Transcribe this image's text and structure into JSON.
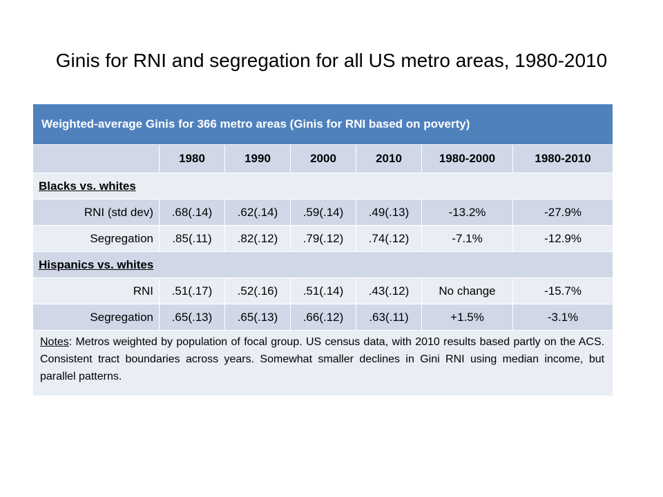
{
  "title": "Ginis for RNI and segregation for all US metro areas, 1980-2010",
  "table": {
    "header": "Weighted-average Ginis for 366 metro areas (Ginis for RNI based on poverty)",
    "columns": [
      "",
      "1980",
      "1990",
      "2000",
      "2010",
      "1980-2000",
      "1980-2010"
    ],
    "sections": [
      {
        "label": "Blacks vs. whites",
        "rows": [
          {
            "label": "RNI (std dev)",
            "cells": [
              ".68(.14)",
              ".62(.14)",
              ".59(.14)",
              ".49(.13)",
              "-13.2%",
              "-27.9%"
            ]
          },
          {
            "label": "Segregation",
            "cells": [
              ".85(.11)",
              ".82(.12)",
              ".79(.12)",
              ".74(.12)",
              "-7.1%",
              "-12.9%"
            ]
          }
        ]
      },
      {
        "label": "Hispanics vs. whites",
        "rows": [
          {
            "label": "RNI",
            "cells": [
              ".51(.17)",
              ".52(.16)",
              ".51(.14)",
              ".43(.12)",
              "No change",
              "-15.7%"
            ]
          },
          {
            "label": "Segregation",
            "cells": [
              ".65(.13)",
              ".65(.13)",
              ".66(.12)",
              ".63(.11)",
              "+1.5%",
              "-3.1%"
            ]
          }
        ]
      }
    ],
    "notes_label": "Notes",
    "notes_text": ": Metros weighted by population of focal group.  US census data, with 2010 results based partly on the ACS.  Consistent tract boundaries across years.  Somewhat smaller declines in Gini RNI using median income, but parallel patterns."
  }
}
